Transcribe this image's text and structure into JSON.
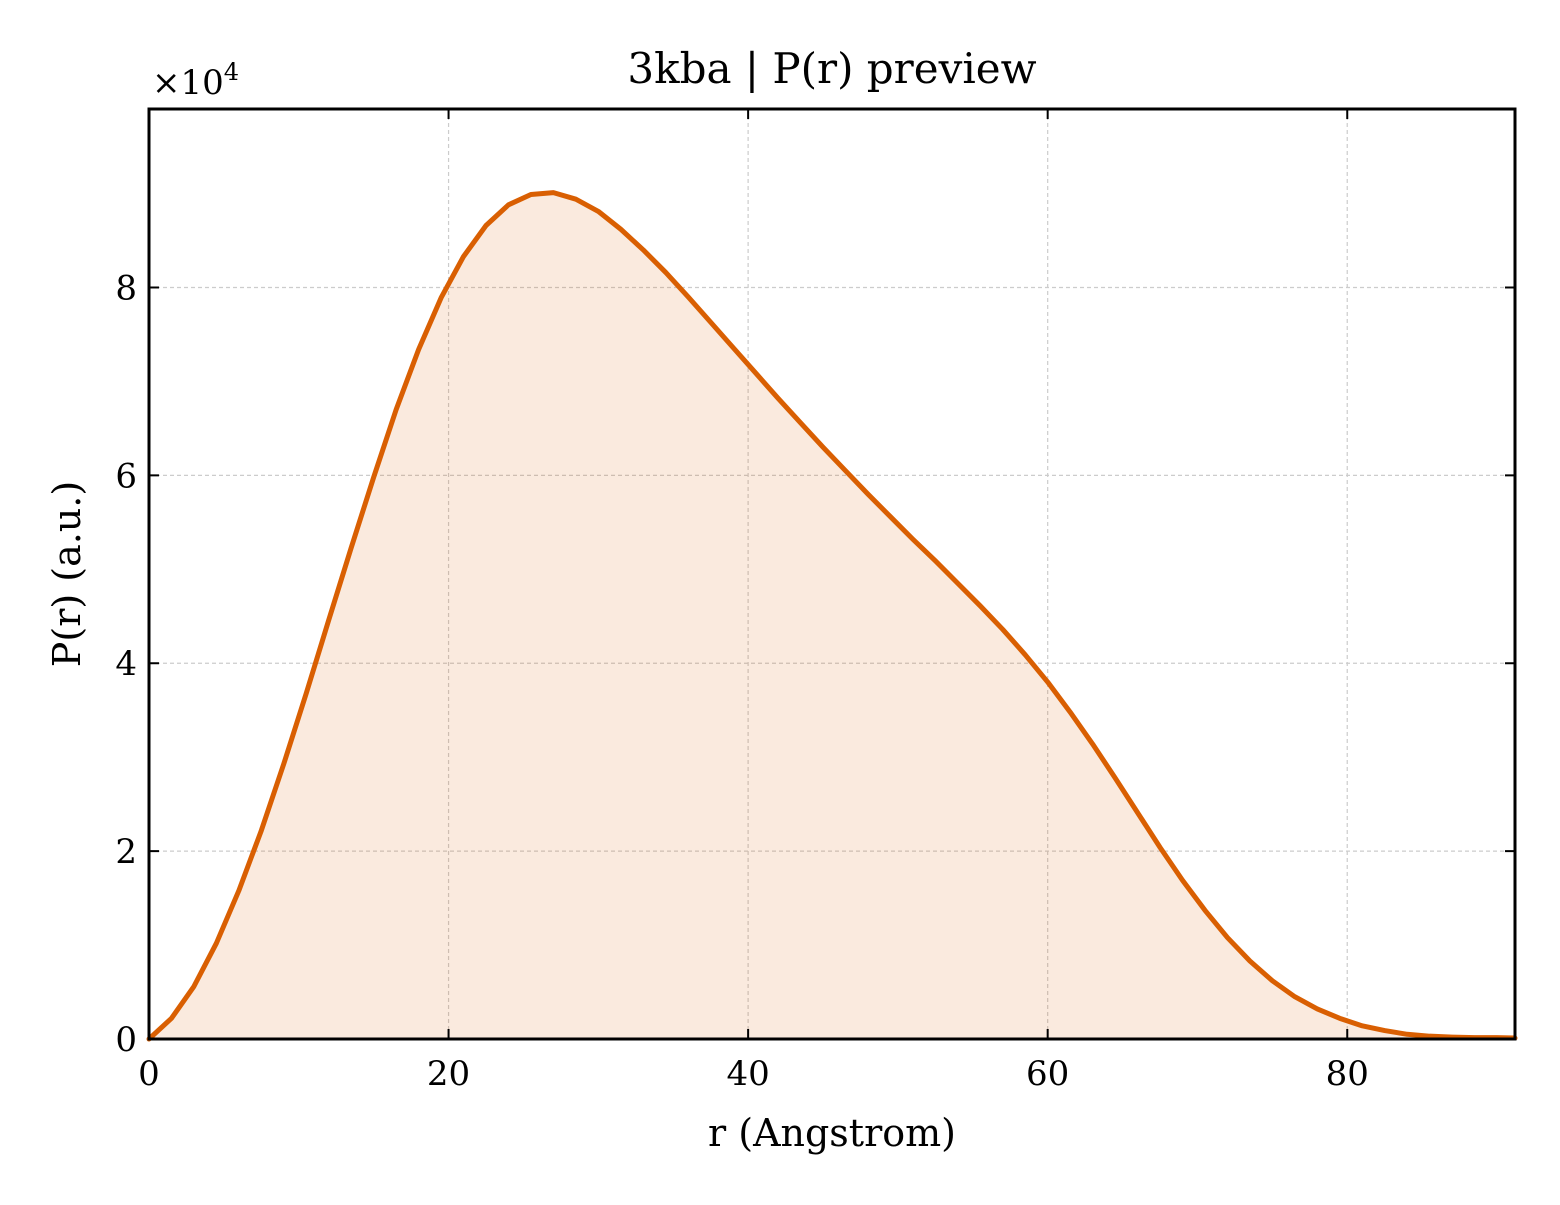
{
  "chart_data": {
    "type": "area",
    "title": "3kba | P(r) preview",
    "xlabel": "r (Angstrom)",
    "ylabel": "P(r) (a.u.)",
    "y_offset_label": "×10",
    "y_offset_exponent": "4",
    "xlim": [
      0,
      91.2
    ],
    "ylim": [
      0,
      99000
    ],
    "grid": true,
    "colors": {
      "line": "#d95f02",
      "fill": "#d95f02"
    },
    "x_ticks": [
      {
        "value": 0,
        "label": "0"
      },
      {
        "value": 20,
        "label": "20"
      },
      {
        "value": 40,
        "label": "40"
      },
      {
        "value": 60,
        "label": "60"
      },
      {
        "value": 80,
        "label": "80"
      }
    ],
    "y_ticks": [
      {
        "value": 0,
        "label": "0"
      },
      {
        "value": 20000,
        "label": "2"
      },
      {
        "value": 40000,
        "label": "4"
      },
      {
        "value": 60000,
        "label": "6"
      },
      {
        "value": 80000,
        "label": "8"
      }
    ],
    "series": [
      {
        "x": [
          0,
          1.5,
          3.0,
          4.5,
          6.0,
          7.5,
          9.0,
          10.5,
          12.0,
          13.5,
          15.0,
          16.5,
          18.0,
          19.5,
          21.0,
          22.5,
          24.0,
          25.5,
          27.0,
          28.5,
          30.0,
          31.5,
          33.0,
          34.5,
          36.0,
          37.5,
          39.0,
          40.5,
          42.0,
          43.5,
          45.0,
          46.5,
          48.0,
          49.5,
          51.0,
          52.5,
          54.0,
          55.5,
          57.0,
          58.5,
          60.0,
          61.5,
          63.0,
          64.5,
          66.0,
          67.5,
          69.0,
          70.5,
          72.0,
          73.5,
          75.0,
          76.5,
          78.0,
          79.5,
          81.0,
          82.5,
          84.0,
          85.5,
          87.0,
          88.5,
          90.0,
          91.2
        ],
        "y": [
          0,
          2200,
          5600,
          10200,
          15800,
          22200,
          29300,
          36800,
          44600,
          52300,
          59800,
          67000,
          73400,
          78900,
          83300,
          86600,
          88800,
          89900,
          90100,
          89400,
          88100,
          86200,
          84000,
          81600,
          79000,
          76300,
          73600,
          70900,
          68200,
          65600,
          63000,
          60500,
          58000,
          55600,
          53200,
          50900,
          48500,
          46100,
          43600,
          40900,
          38000,
          34800,
          31400,
          27800,
          24100,
          20400,
          16900,
          13700,
          10800,
          8300,
          6200,
          4500,
          3200,
          2200,
          1400,
          900,
          500,
          300,
          200,
          150,
          150,
          100
        ]
      }
    ]
  }
}
